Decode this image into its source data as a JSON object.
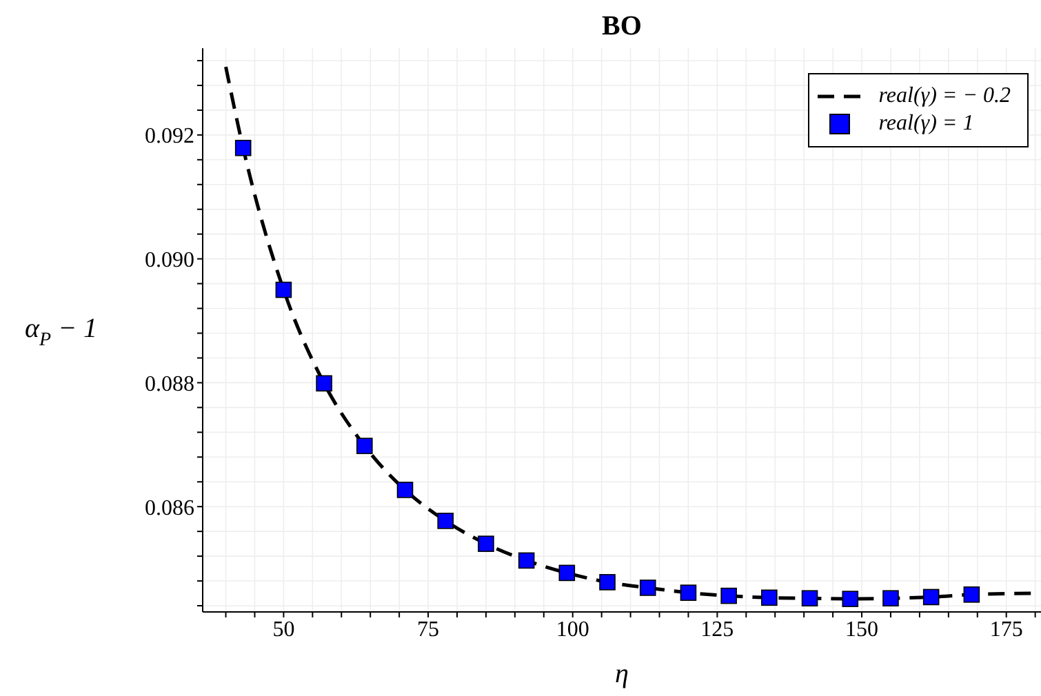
{
  "chart_data": {
    "type": "line",
    "title": "BO",
    "xlabel": "η",
    "ylabel": "α$_{P}$ − 1",
    "xlim": [
      36,
      181
    ],
    "xticks": [
      {
        "value": 40,
        "label": null
      },
      {
        "value": 45,
        "label": null
      },
      50,
      {
        "value": 55,
        "label": null
      },
      {
        "value": 60,
        "label": null
      },
      {
        "value": 65,
        "label": null
      },
      {
        "value": 70,
        "label": null
      },
      75,
      {
        "value": 80,
        "label": null
      },
      {
        "value": 85,
        "label": null
      },
      {
        "value": 90,
        "label": null
      },
      {
        "value": 95,
        "label": null
      },
      100,
      {
        "value": 105,
        "label": null
      },
      {
        "value": 110,
        "label": null
      },
      {
        "value": 115,
        "label": null
      },
      {
        "value": 120,
        "label": null
      },
      125,
      {
        "value": 130,
        "label": null
      },
      {
        "value": 135,
        "label": null
      },
      {
        "value": 140,
        "label": null
      },
      {
        "value": 145,
        "label": null
      },
      150,
      {
        "value": 155,
        "label": null
      },
      {
        "value": 160,
        "label": null
      },
      {
        "value": 165,
        "label": null
      },
      {
        "value": 170,
        "label": null
      },
      175,
      {
        "value": 180,
        "label": null
      }
    ],
    "ylim": [
      0.0843,
      0.0934
    ],
    "yticks": [
      {
        "value": 0.0844,
        "label": null
      },
      {
        "value": 0.0848,
        "label": null
      },
      {
        "value": 0.0852,
        "label": null
      },
      {
        "value": 0.0856,
        "label": null
      },
      0.086,
      {
        "value": 0.0864,
        "label": null
      },
      {
        "value": 0.0868,
        "label": null
      },
      {
        "value": 0.0872,
        "label": null
      },
      {
        "value": 0.0876,
        "label": null
      },
      0.088,
      {
        "value": 0.0884,
        "label": null
      },
      {
        "value": 0.0888,
        "label": null
      },
      {
        "value": 0.0892,
        "label": null
      },
      {
        "value": 0.0896,
        "label": null
      },
      {
        "value": 0.09,
        "label": "0.090"
      },
      {
        "value": 0.0904,
        "label": null
      },
      {
        "value": 0.0908,
        "label": null
      },
      {
        "value": 0.0912,
        "label": null
      },
      {
        "value": 0.0916,
        "label": null
      },
      0.092,
      {
        "value": 0.0924,
        "label": null
      },
      {
        "value": 0.0928,
        "label": null
      },
      {
        "value": 0.0932,
        "label": null
      }
    ],
    "grid": true,
    "legend": "top right",
    "series": [
      {
        "name": "real(γ) = − 0.2",
        "color": "#000000",
        "line_style": "dashed",
        "marker": "none",
        "x": [
          40,
          43,
          50,
          57,
          64,
          71,
          78,
          85,
          92,
          99,
          106,
          113,
          120,
          127,
          134,
          141,
          148,
          155,
          162,
          169,
          180
        ],
        "values": [
          0.0931,
          0.09179,
          0.0895,
          0.08799,
          0.08698,
          0.08627,
          0.08577,
          0.0854,
          0.08513,
          0.08493,
          0.08478,
          0.08469,
          0.08461,
          0.08456,
          0.08453,
          0.08452,
          0.08451,
          0.08452,
          0.08454,
          0.08458,
          0.0846
        ]
      },
      {
        "name": "real(γ) = 1",
        "type": "scatter",
        "color": "#0000ff",
        "marker": "square",
        "x": [
          43,
          50,
          57,
          64,
          71,
          78,
          85,
          92,
          99,
          106,
          113,
          120,
          127,
          134,
          141,
          148,
          155,
          162,
          169
        ],
        "values": [
          0.09179,
          0.0895,
          0.08799,
          0.08698,
          0.08627,
          0.08577,
          0.0854,
          0.08513,
          0.08493,
          0.08478,
          0.08469,
          0.08461,
          0.08456,
          0.08453,
          0.08452,
          0.08451,
          0.08452,
          0.08454,
          0.08458
        ]
      }
    ]
  }
}
